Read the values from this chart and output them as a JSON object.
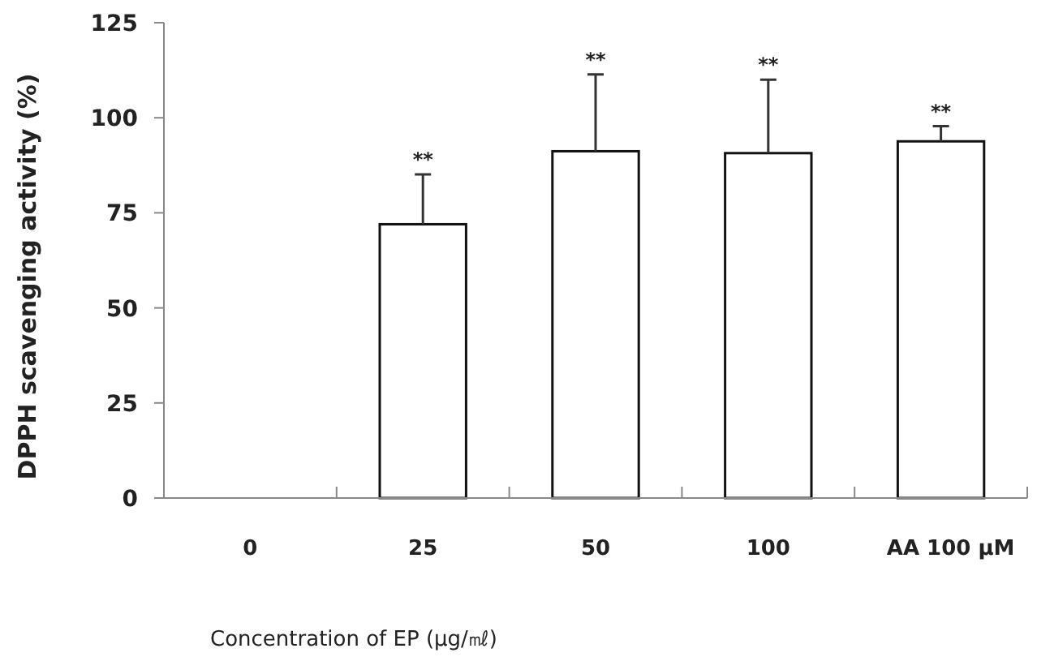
{
  "chart_data": {
    "type": "bar",
    "xlabel": "Concentration of EP (μg/㎖)",
    "ylabel": "DPPH scavenging activity (%)",
    "categories": [
      "0",
      "25",
      "50",
      "100",
      "AA 100 μM"
    ],
    "values": [
      0,
      72,
      91.2,
      90.7,
      93.8
    ],
    "errors": [
      null,
      [
        72,
        85.1
      ],
      [
        91.2,
        111.4
      ],
      [
        90.7,
        110
      ],
      [
        93.8,
        97.8
      ]
    ],
    "color": "#ffffff",
    "ylim": [
      0,
      125
    ],
    "yticks": [
      0,
      25,
      50,
      75,
      100,
      125
    ],
    "annotations": [
      "**",
      "**",
      "**",
      "**"
    ],
    "grid": false
  }
}
